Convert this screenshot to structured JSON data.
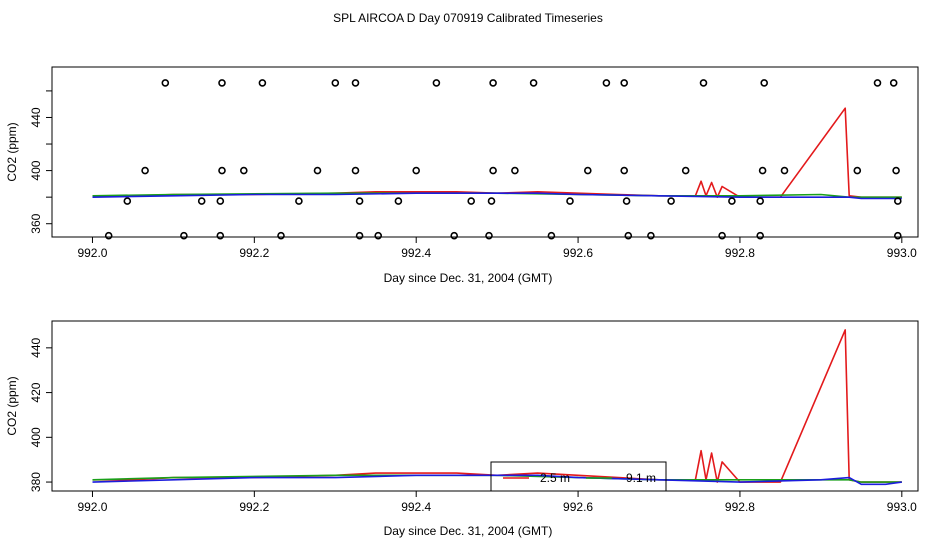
{
  "figure_title": "SPL AIRCOA D  Day 070919  Calibrated Timeseries",
  "colors": {
    "red": "#e31a1c",
    "green": "#1aa01a",
    "blue": "#1c1cdd",
    "black": "#000000"
  },
  "chart_data": [
    {
      "type": "line",
      "title": "SPL AIRCOA D  Day 070919  Calibrated Timeseries",
      "xlabel": "Day since Dec. 31, 2004 (GMT)",
      "ylabel": "CO2 (ppm)",
      "xlim": [
        991.95,
        993.02
      ],
      "ylim": [
        350,
        478
      ],
      "x_ticks": [
        992.0,
        992.2,
        992.4,
        992.6,
        992.8,
        993.0
      ],
      "x_tick_labels": [
        "992.0",
        "992.2",
        "992.4",
        "992.6",
        "992.8",
        "993.0"
      ],
      "y_ticks": [
        360,
        380,
        400,
        420,
        440,
        460
      ],
      "y_tick_labels": [
        "360",
        "",
        "400",
        "",
        "440",
        ""
      ],
      "series": [
        {
          "name": "red",
          "color": "#e31a1c",
          "x": [
            992.0,
            992.05,
            992.1,
            992.2,
            992.3,
            992.35,
            992.45,
            992.5,
            992.55,
            992.6,
            992.65,
            992.7,
            992.745,
            992.752,
            992.758,
            992.765,
            992.772,
            992.778,
            992.8,
            992.85,
            992.93,
            992.935,
            992.95,
            993.0
          ],
          "y": [
            381,
            381,
            382,
            382,
            383,
            384,
            384,
            383,
            384,
            383,
            382,
            381,
            381,
            392,
            381,
            391,
            380,
            388,
            380,
            380,
            447,
            381,
            380,
            380
          ]
        },
        {
          "name": "green",
          "color": "#1aa01a",
          "x": [
            992.0,
            992.1,
            992.3,
            992.5,
            992.6,
            992.7,
            992.8,
            992.9,
            992.935,
            992.95,
            993.0
          ],
          "y": [
            381,
            382,
            383,
            383,
            382,
            381,
            381,
            382,
            380,
            380,
            380
          ]
        },
        {
          "name": "blue",
          "color": "#1c1cdd",
          "x": [
            992.0,
            992.1,
            992.2,
            992.3,
            992.4,
            992.5,
            992.55,
            992.6,
            992.7,
            992.8,
            992.9,
            992.935,
            992.95,
            992.98,
            993.0
          ],
          "y": [
            380,
            381,
            382,
            382,
            383,
            383,
            383,
            382,
            381,
            380,
            380,
            380,
            379,
            379,
            379
          ]
        }
      ],
      "markers": {
        "symbol": "open-circle",
        "x": [
          992.09,
          992.16,
          992.21,
          992.3,
          992.325,
          992.425,
          992.495,
          992.545,
          992.635,
          992.657,
          992.755,
          992.83,
          992.97,
          992.99,
          992.065,
          992.16,
          992.187,
          992.278,
          992.325,
          992.4,
          992.495,
          992.522,
          992.612,
          992.657,
          992.733,
          992.828,
          992.855,
          992.945,
          992.993,
          992.043,
          992.135,
          992.158,
          992.255,
          992.33,
          992.378,
          992.468,
          992.493,
          992.59,
          992.66,
          992.715,
          992.79,
          992.825,
          992.995,
          992.02,
          992.113,
          992.158,
          992.233,
          992.33,
          992.353,
          992.447,
          992.49,
          992.567,
          992.662,
          992.69,
          992.778,
          992.825,
          992.995
        ],
        "y": [
          466,
          466,
          466,
          466,
          466,
          466,
          466,
          466,
          466,
          466,
          466,
          466,
          466,
          466,
          400,
          400,
          400,
          400,
          400,
          400,
          400,
          400,
          400,
          400,
          400,
          400,
          400,
          400,
          400,
          377,
          377,
          377,
          377,
          377,
          377,
          377,
          377,
          377,
          377,
          377,
          377,
          377,
          377,
          351,
          351,
          351,
          351,
          351,
          351,
          351,
          351,
          351,
          351,
          351,
          351,
          351,
          351
        ]
      }
    },
    {
      "type": "line",
      "title": "",
      "xlabel": "Day since Dec. 31, 2004 (GMT)",
      "ylabel": "CO2 (ppm)",
      "xlim": [
        991.95,
        993.02
      ],
      "ylim": [
        376,
        452
      ],
      "x_ticks": [
        992.0,
        992.2,
        992.4,
        992.6,
        992.8,
        993.0
      ],
      "x_tick_labels": [
        "992.0",
        "992.2",
        "992.4",
        "992.6",
        "992.8",
        "993.0"
      ],
      "y_ticks": [
        380,
        400,
        420,
        440
      ],
      "y_tick_labels": [
        "380",
        "400",
        "420",
        "440"
      ],
      "series": [
        {
          "name": "red",
          "color": "#e31a1c",
          "x": [
            992.0,
            992.05,
            992.1,
            992.2,
            992.3,
            992.35,
            992.45,
            992.5,
            992.55,
            992.6,
            992.65,
            992.7,
            992.745,
            992.752,
            992.758,
            992.765,
            992.772,
            992.778,
            992.8,
            992.85,
            992.93,
            992.935,
            992.95,
            993.0
          ],
          "y": [
            381,
            381,
            382,
            382,
            383,
            384,
            384,
            383,
            384,
            383,
            382,
            381,
            381,
            394,
            381,
            393,
            380,
            389,
            380,
            380,
            448,
            381,
            380,
            380
          ]
        },
        {
          "name": "green",
          "color": "#1aa01a",
          "x": [
            992.0,
            992.1,
            992.3,
            992.5,
            992.6,
            992.7,
            992.8,
            992.9,
            992.935,
            992.95,
            993.0
          ],
          "y": [
            381,
            382,
            383,
            383,
            382,
            381,
            381,
            381,
            381,
            380,
            380
          ]
        },
        {
          "name": "blue",
          "color": "#1c1cdd",
          "x": [
            992.0,
            992.1,
            992.2,
            992.3,
            992.4,
            992.5,
            992.55,
            992.6,
            992.7,
            992.8,
            992.9,
            992.935,
            992.95,
            992.98,
            993.0
          ],
          "y": [
            380,
            381,
            382,
            382,
            383,
            383,
            383,
            382,
            381,
            380,
            381,
            382,
            379,
            379,
            380
          ]
        }
      ],
      "legend": {
        "placement": "bottom-center",
        "entries": [
          {
            "label": "2.5 m",
            "color": "#e31a1c"
          },
          {
            "label": "9.1 m",
            "color": "#1aa01a"
          }
        ]
      }
    }
  ]
}
